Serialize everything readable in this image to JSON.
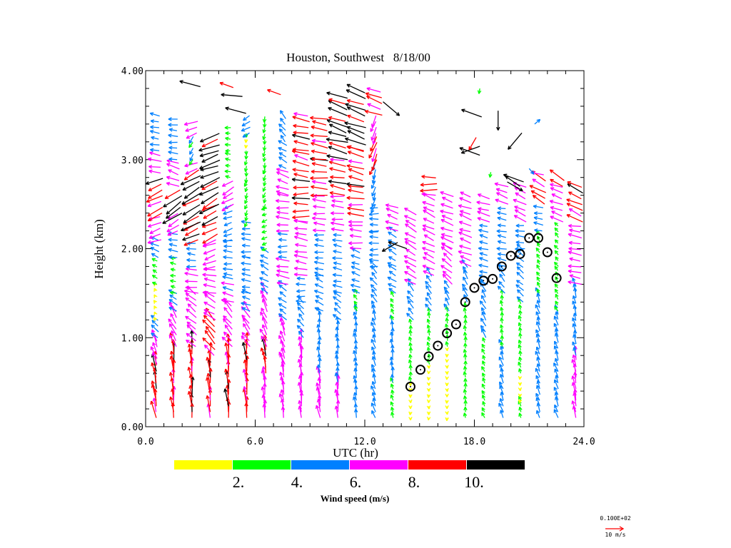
{
  "chart_data": {
    "type": "scatter",
    "subtype": "wind-vector-profile",
    "title": "Houston, Southwest   8/18/00",
    "xlabel": "UTC (hr)",
    "ylabel": "Height (km)",
    "xlim": [
      0,
      24
    ],
    "ylim": [
      0,
      4
    ],
    "x_tick_labels": [
      "0.0",
      "6.0",
      "12.0",
      "18.0",
      "24.0"
    ],
    "x_ticks": [
      0,
      6,
      12,
      18,
      24
    ],
    "y_tick_labels": [
      "0.00",
      "1.00",
      "2.00",
      "3.00",
      "4.00"
    ],
    "y_ticks": [
      0,
      1,
      2,
      3,
      4
    ],
    "grid": false,
    "vector_columns_note": "segments: [height_from_km, height_to_km, speed_m_s, direction_toward_deg (0=east, 90=north)]",
    "vector_columns": [
      {
        "t": 0.5,
        "segments": [
          [
            0.1,
            0.7,
            9,
            100
          ],
          [
            0.7,
            1.0,
            7,
            110
          ],
          [
            1.0,
            1.2,
            5,
            140
          ],
          [
            1.2,
            1.6,
            1.5,
            120
          ],
          [
            1.6,
            1.9,
            3,
            150
          ],
          [
            1.9,
            2.1,
            5,
            155
          ],
          [
            2.1,
            2.4,
            7,
            200
          ],
          [
            2.4,
            2.85,
            9,
            205
          ],
          [
            2.85,
            3.1,
            7,
            170
          ],
          [
            3.1,
            3.5,
            5,
            170
          ]
        ]
      },
      {
        "t": 1.5,
        "segments": [
          [
            0.1,
            0.9,
            9,
            95
          ],
          [
            0.9,
            1.3,
            7,
            120
          ],
          [
            1.3,
            1.5,
            5,
            150
          ],
          [
            1.5,
            1.9,
            3,
            170
          ],
          [
            1.9,
            2.2,
            5,
            170
          ],
          [
            2.2,
            2.4,
            7,
            210
          ],
          [
            2.4,
            2.7,
            11,
            215
          ],
          [
            2.7,
            3.0,
            7,
            160
          ],
          [
            3.0,
            3.5,
            5,
            175
          ]
        ]
      },
      {
        "t": 2.5,
        "segments": [
          [
            0.1,
            0.9,
            9,
            95
          ],
          [
            0.9,
            1.5,
            7,
            140
          ],
          [
            1.5,
            1.8,
            7,
            175
          ],
          [
            1.8,
            2.1,
            5,
            175
          ],
          [
            2.1,
            2.3,
            9,
            205
          ],
          [
            2.3,
            2.9,
            11,
            210
          ],
          [
            2.9,
            3.0,
            7,
            200
          ],
          [
            3.0,
            3.3,
            4,
            240
          ],
          [
            3.3,
            3.45,
            7,
            200
          ]
        ]
      },
      {
        "t": 3.5,
        "segments": [
          [
            0.1,
            0.8,
            9,
            95
          ],
          [
            0.8,
            1.2,
            9,
            130
          ],
          [
            1.2,
            1.5,
            7,
            150
          ],
          [
            1.5,
            1.8,
            7,
            170
          ],
          [
            1.8,
            2.1,
            7,
            200
          ],
          [
            2.1,
            2.5,
            9,
            205
          ],
          [
            2.5,
            2.8,
            11,
            210
          ],
          [
            2.8,
            3.1,
            11,
            200
          ],
          [
            3.1,
            3.3,
            11,
            200
          ]
        ]
      },
      {
        "t": 4.5,
        "segments": [
          [
            0.1,
            0.9,
            9,
            95
          ],
          [
            0.9,
            1.4,
            7,
            130
          ],
          [
            1.4,
            1.7,
            6.5,
            165
          ],
          [
            1.7,
            2.1,
            5,
            175
          ],
          [
            2.1,
            2.5,
            5,
            200
          ],
          [
            2.5,
            2.8,
            7,
            210
          ],
          [
            2.8,
            3.1,
            3,
            170
          ],
          [
            3.1,
            3.4,
            3,
            175
          ]
        ]
      },
      {
        "t": 5.5,
        "segments": [
          [
            0.1,
            0.9,
            9,
            95
          ],
          [
            0.9,
            1.3,
            7,
            125
          ],
          [
            1.3,
            1.5,
            5,
            160
          ],
          [
            1.5,
            1.9,
            5,
            170
          ],
          [
            1.9,
            2.3,
            5,
            175
          ],
          [
            2.3,
            2.8,
            3,
            250
          ],
          [
            2.8,
            3.1,
            3,
            260
          ],
          [
            3.1,
            3.3,
            2,
            270
          ],
          [
            3.3,
            3.5,
            5,
            210
          ]
        ]
      },
      {
        "t": 6.5,
        "segments": [
          [
            0.1,
            0.6,
            7,
            95
          ],
          [
            0.6,
            0.9,
            9,
            100
          ],
          [
            0.9,
            1.5,
            7,
            115
          ],
          [
            1.5,
            2.0,
            5,
            150
          ],
          [
            2.0,
            2.5,
            3,
            200
          ],
          [
            2.5,
            2.9,
            3,
            250
          ],
          [
            2.9,
            3.5,
            3,
            260
          ]
        ]
      },
      {
        "t": 7.5,
        "segments": [
          [
            0.1,
            0.7,
            7,
            100
          ],
          [
            0.7,
            1.2,
            7,
            110
          ],
          [
            1.2,
            1.6,
            5,
            145
          ],
          [
            1.6,
            1.9,
            7,
            170
          ],
          [
            1.9,
            2.2,
            5,
            180
          ],
          [
            2.2,
            2.6,
            7,
            175
          ],
          [
            2.6,
            2.9,
            7,
            160
          ],
          [
            2.9,
            3.2,
            5,
            150
          ],
          [
            3.2,
            3.5,
            5,
            130
          ]
        ]
      },
      {
        "t": 8.5,
        "segments": [
          [
            0.1,
            1.0,
            7,
            95
          ],
          [
            1.0,
            1.4,
            5,
            130
          ],
          [
            1.4,
            1.7,
            5,
            180
          ],
          [
            1.7,
            2.3,
            7,
            170
          ],
          [
            2.3,
            2.8,
            9,
            180
          ],
          [
            2.8,
            3.1,
            9,
            165
          ],
          [
            3.1,
            3.5,
            9,
            170
          ]
        ]
      },
      {
        "t": 9.5,
        "segments": [
          [
            0.1,
            0.6,
            7,
            100
          ],
          [
            0.6,
            1.3,
            5,
            95
          ],
          [
            1.3,
            1.7,
            5,
            155
          ],
          [
            1.7,
            2.2,
            5,
            175
          ],
          [
            2.2,
            2.6,
            7,
            175
          ],
          [
            2.6,
            3.0,
            9,
            175
          ],
          [
            3.0,
            3.5,
            9,
            170
          ]
        ]
      },
      {
        "t": 10.5,
        "segments": [
          [
            0.1,
            0.5,
            7,
            95
          ],
          [
            0.5,
            1.2,
            5,
            95
          ],
          [
            1.2,
            1.5,
            5,
            140
          ],
          [
            1.5,
            2.2,
            5,
            170
          ],
          [
            2.2,
            2.6,
            7,
            175
          ],
          [
            2.6,
            3.0,
            9,
            170
          ],
          [
            3.0,
            3.3,
            11,
            165
          ],
          [
            3.3,
            3.7,
            11,
            160
          ]
        ]
      },
      {
        "t": 11.5,
        "segments": [
          [
            0.1,
            1.3,
            5,
            100
          ],
          [
            1.3,
            1.5,
            3,
            120
          ],
          [
            1.5,
            2.0,
            5,
            160
          ],
          [
            2.0,
            2.3,
            7,
            175
          ],
          [
            2.3,
            2.7,
            9,
            175
          ],
          [
            2.7,
            3.1,
            9,
            165
          ],
          [
            3.1,
            3.8,
            11,
            160
          ]
        ]
      },
      {
        "t": 12.5,
        "segments": [
          [
            0.1,
            1.4,
            5,
            110
          ],
          [
            1.4,
            1.8,
            5,
            130
          ],
          [
            1.8,
            2.2,
            5,
            180
          ],
          [
            2.2,
            2.5,
            5,
            180
          ],
          [
            2.5,
            3.0,
            5,
            250
          ],
          [
            3.0,
            3.3,
            9,
            250
          ],
          [
            3.3,
            3.5,
            7,
            250
          ],
          [
            3.5,
            3.8,
            9,
            160
          ]
        ]
      },
      {
        "t": 13.5,
        "segments": [
          [
            0.1,
            0.5,
            3,
            110
          ],
          [
            0.5,
            1.2,
            5,
            95
          ],
          [
            1.2,
            1.5,
            3,
            120
          ],
          [
            1.5,
            1.8,
            5,
            150
          ],
          [
            1.8,
            2.2,
            5,
            150
          ],
          [
            2.2,
            2.5,
            7,
            160
          ]
        ]
      },
      {
        "t": 14.5,
        "segments": [
          [
            0.1,
            0.5,
            1.5,
            270
          ],
          [
            0.5,
            1.2,
            3,
            100
          ],
          [
            1.2,
            1.6,
            5,
            130
          ],
          [
            1.6,
            2.4,
            7,
            150
          ]
        ]
      },
      {
        "t": 15.5,
        "segments": [
          [
            0.1,
            0.7,
            1.5,
            270
          ],
          [
            0.7,
            1.3,
            3,
            105
          ],
          [
            1.3,
            1.7,
            5,
            125
          ],
          [
            1.7,
            2.6,
            7,
            155
          ],
          [
            2.6,
            2.8,
            9,
            180
          ]
        ]
      },
      {
        "t": 16.5,
        "segments": [
          [
            0.1,
            0.9,
            1.5,
            270
          ],
          [
            0.9,
            1.3,
            3,
            100
          ],
          [
            1.3,
            1.6,
            5,
            120
          ],
          [
            1.6,
            2.0,
            7,
            140
          ],
          [
            2.0,
            2.6,
            7,
            160
          ]
        ]
      },
      {
        "t": 17.5,
        "segments": [
          [
            0.1,
            1.4,
            3,
            95
          ],
          [
            1.4,
            1.8,
            5,
            120
          ],
          [
            1.8,
            2.6,
            7,
            160
          ]
        ]
      },
      {
        "t": 18.5,
        "segments": [
          [
            0.1,
            1.0,
            3,
            115
          ],
          [
            1.0,
            1.6,
            5,
            120
          ],
          [
            1.6,
            2.3,
            5,
            165
          ],
          [
            2.3,
            2.6,
            7,
            165
          ]
        ]
      },
      {
        "t": 19.5,
        "segments": [
          [
            0.1,
            0.9,
            5,
            110
          ],
          [
            0.9,
            1.5,
            3,
            100
          ],
          [
            1.5,
            1.8,
            5,
            130
          ],
          [
            1.8,
            2.5,
            5,
            170
          ],
          [
            2.5,
            2.7,
            7,
            160
          ]
        ]
      },
      {
        "t": 20.5,
        "segments": [
          [
            0.1,
            0.3,
            3,
            110
          ],
          [
            0.3,
            0.6,
            1.5,
            270
          ],
          [
            0.6,
            1.4,
            3,
            105
          ],
          [
            1.4,
            2.0,
            5,
            140
          ],
          [
            2.0,
            2.3,
            5,
            175
          ],
          [
            2.3,
            2.7,
            7,
            155
          ]
        ]
      },
      {
        "t": 21.5,
        "segments": [
          [
            0.1,
            1.5,
            5,
            110
          ],
          [
            1.5,
            2.2,
            3,
            120
          ],
          [
            2.2,
            2.5,
            5,
            170
          ],
          [
            2.5,
            2.8,
            9,
            150
          ]
        ]
      },
      {
        "t": 22.5,
        "segments": [
          [
            0.1,
            1.3,
            5,
            110
          ],
          [
            1.3,
            1.8,
            3,
            120
          ],
          [
            1.8,
            2.3,
            3,
            130
          ],
          [
            2.3,
            2.7,
            7,
            160
          ],
          [
            2.7,
            2.8,
            9,
            150
          ]
        ]
      },
      {
        "t": 23.5,
        "segments": [
          [
            0.1,
            0.8,
            7,
            100
          ],
          [
            0.8,
            1.6,
            5,
            105
          ],
          [
            1.6,
            2.3,
            7,
            170
          ],
          [
            2.3,
            2.7,
            9,
            155
          ]
        ]
      }
    ],
    "isolated_vectors_note": "[t_hr, height_km, speed_m_s, direction_toward_deg]",
    "isolated_vectors": [
      [
        3.0,
        3.82,
        12,
        165
      ],
      [
        5.3,
        3.71,
        12,
        175
      ],
      [
        5.5,
        3.52,
        12,
        165
      ],
      [
        4.8,
        3.81,
        8,
        160
      ],
      [
        7.4,
        3.73,
        8,
        160
      ],
      [
        13.0,
        3.65,
        12,
        320
      ],
      [
        13.8,
        2.07,
        10,
        210
      ],
      [
        14.3,
        2.0,
        11,
        160
      ],
      [
        18.4,
        3.48,
        12,
        160
      ],
      [
        18.3,
        3.15,
        11,
        200
      ],
      [
        18.3,
        3.05,
        12,
        160
      ],
      [
        19.3,
        3.55,
        11,
        270
      ],
      [
        20.6,
        3.3,
        12,
        230
      ],
      [
        20.5,
        2.7,
        10,
        145
      ],
      [
        19.8,
        2.75,
        10,
        330
      ],
      [
        20.7,
        2.75,
        12,
        160
      ],
      [
        21.8,
        2.83,
        7,
        170
      ],
      [
        18.1,
        3.25,
        8,
        240
      ],
      [
        18.9,
        2.86,
        3,
        260
      ],
      [
        21.3,
        3.4,
        4,
        40
      ],
      [
        21.0,
        2.9,
        4,
        310
      ],
      [
        18.3,
        3.8,
        3,
        260
      ]
    ],
    "boundary_layer_markers_note": "[t_hr, height_km]",
    "boundary_layer_markers": [
      [
        14.5,
        0.45
      ],
      [
        15.05,
        0.64
      ],
      [
        15.5,
        0.79
      ],
      [
        16.0,
        0.91
      ],
      [
        16.5,
        1.05
      ],
      [
        17.0,
        1.15
      ],
      [
        17.5,
        1.4
      ],
      [
        18.0,
        1.56
      ],
      [
        18.5,
        1.64
      ],
      [
        19.0,
        1.66
      ],
      [
        19.5,
        1.8
      ],
      [
        20.0,
        1.92
      ],
      [
        20.5,
        1.94
      ],
      [
        21.0,
        2.12
      ],
      [
        21.5,
        2.12
      ],
      [
        22.0,
        1.96
      ],
      [
        22.5,
        1.67
      ]
    ],
    "colorbar": {
      "label": "Wind speed (m/s)",
      "tick_labels": [
        "2.",
        "4.",
        "6.",
        "8.",
        "10."
      ],
      "bins_m_s": [
        [
          0,
          2
        ],
        [
          2,
          4
        ],
        [
          4,
          6
        ],
        [
          6,
          8
        ],
        [
          8,
          10
        ],
        [
          10,
          99
        ]
      ],
      "colors": [
        "#ffff00",
        "#00ff00",
        "#0080ff",
        "#ff00ff",
        "#ff0000",
        "#000000"
      ]
    },
    "reference_vector": {
      "value_label": "0.100E+02",
      "unit_label": "10 m/s",
      "speed_m_s": 10,
      "color": "#ff0000"
    }
  }
}
